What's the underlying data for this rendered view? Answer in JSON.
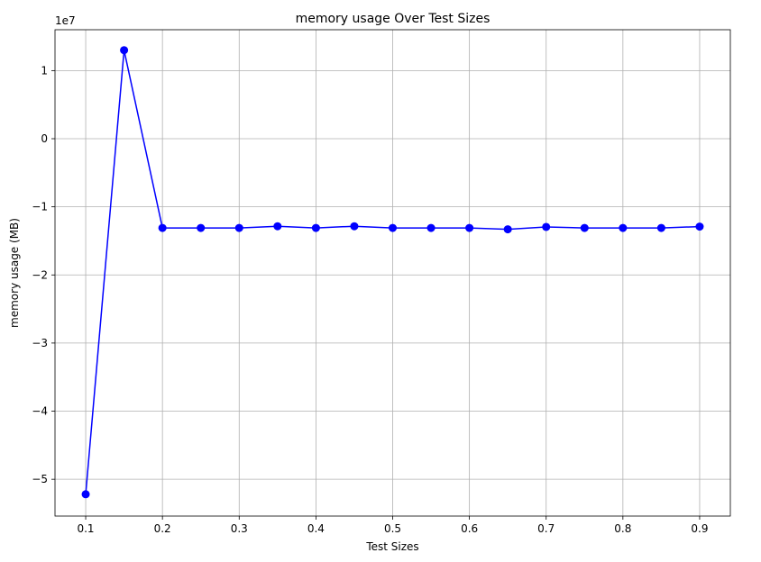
{
  "chart_data": {
    "type": "line",
    "title": "memory usage Over Test Sizes",
    "xlabel": "Test Sizes",
    "ylabel": "memory usage (MB)",
    "y_offset_label": "1e7",
    "xlim": [
      0.06,
      0.94
    ],
    "ylim": [
      -55400000.0,
      16000000.0
    ],
    "x_ticks": [
      0.1,
      0.2,
      0.3,
      0.4,
      0.5,
      0.6,
      0.7,
      0.8,
      0.9
    ],
    "x_tick_labels": [
      "0.1",
      "0.2",
      "0.3",
      "0.4",
      "0.5",
      "0.6",
      "0.7",
      "0.8",
      "0.9"
    ],
    "y_ticks": [
      -50000000.0,
      -40000000.0,
      -30000000.0,
      -20000000.0,
      -10000000.0,
      0,
      10000000.0
    ],
    "y_tick_labels": [
      "−5",
      "−4",
      "−3",
      "−2",
      "−1",
      "0",
      "1"
    ],
    "grid": true,
    "series": [
      {
        "color": "#0000ff",
        "marker": "circle",
        "x": [
          0.1,
          0.15,
          0.2,
          0.25,
          0.3,
          0.35,
          0.4,
          0.45,
          0.5,
          0.55,
          0.6,
          0.65,
          0.7,
          0.75,
          0.8,
          0.85,
          0.9
        ],
        "y": [
          -52200000,
          13000000,
          -13100000,
          -13100000,
          -13100000,
          -12850000,
          -13100000,
          -12850000,
          -13100000,
          -13100000,
          -13100000,
          -13300000,
          -12950000,
          -13100000,
          -13100000,
          -13100000,
          -12900000
        ]
      }
    ]
  }
}
